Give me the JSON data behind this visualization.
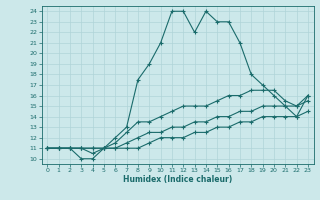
{
  "title": "",
  "xlabel": "Humidex (Indice chaleur)",
  "ylabel": "",
  "bg_color": "#cce8ea",
  "grid_color": "#b0d4d8",
  "line_color": "#1a6b6b",
  "xlim": [
    -0.5,
    23.5
  ],
  "ylim": [
    9.5,
    24.5
  ],
  "xticks": [
    0,
    1,
    2,
    3,
    4,
    5,
    6,
    7,
    8,
    9,
    10,
    11,
    12,
    13,
    14,
    15,
    16,
    17,
    18,
    19,
    20,
    21,
    22,
    23
  ],
  "yticks": [
    10,
    11,
    12,
    13,
    14,
    15,
    16,
    17,
    18,
    19,
    20,
    21,
    22,
    23,
    24
  ],
  "line1_x": [
    0,
    1,
    2,
    3,
    4,
    5,
    6,
    7,
    8,
    9,
    10,
    11,
    12,
    13,
    14,
    15,
    16,
    17,
    18,
    19,
    20,
    21,
    22,
    23
  ],
  "line1_y": [
    11,
    11,
    11,
    10,
    10,
    11,
    12,
    13,
    17.5,
    19,
    21,
    24,
    24,
    22,
    24,
    23,
    23,
    21,
    18,
    17,
    16,
    15,
    14,
    16
  ],
  "line2_x": [
    0,
    1,
    2,
    3,
    4,
    5,
    6,
    7,
    8,
    9,
    10,
    11,
    12,
    13,
    14,
    15,
    16,
    17,
    18,
    19,
    20,
    21,
    22,
    23
  ],
  "line2_y": [
    11,
    11,
    11,
    11,
    10.5,
    11,
    11.5,
    12.5,
    13.5,
    13.5,
    14,
    14.5,
    15,
    15,
    15,
    15.5,
    16,
    16,
    16.5,
    16.5,
    16.5,
    15.5,
    15,
    16
  ],
  "line3_x": [
    0,
    1,
    2,
    3,
    4,
    5,
    6,
    7,
    8,
    9,
    10,
    11,
    12,
    13,
    14,
    15,
    16,
    17,
    18,
    19,
    20,
    21,
    22,
    23
  ],
  "line3_y": [
    11,
    11,
    11,
    11,
    11,
    11,
    11,
    11.5,
    12,
    12.5,
    12.5,
    13,
    13,
    13.5,
    13.5,
    14,
    14,
    14.5,
    14.5,
    15,
    15,
    15,
    15,
    15.5
  ],
  "line4_x": [
    0,
    1,
    2,
    3,
    4,
    5,
    6,
    7,
    8,
    9,
    10,
    11,
    12,
    13,
    14,
    15,
    16,
    17,
    18,
    19,
    20,
    21,
    22,
    23
  ],
  "line4_y": [
    11,
    11,
    11,
    11,
    11,
    11,
    11,
    11,
    11,
    11.5,
    12,
    12,
    12,
    12.5,
    12.5,
    13,
    13,
    13.5,
    13.5,
    14,
    14,
    14,
    14,
    14.5
  ]
}
